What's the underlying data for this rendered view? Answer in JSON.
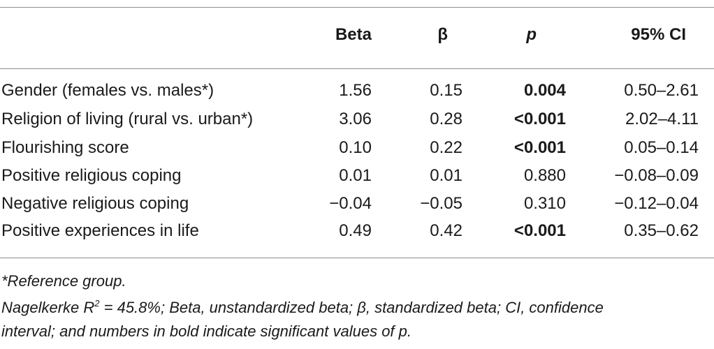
{
  "table": {
    "headers": {
      "label": "",
      "beta": "Beta",
      "std_beta": "β",
      "p": "p",
      "ci": "95% CI"
    },
    "rows": [
      {
        "label": "Gender (females vs. males*)",
        "beta": "1.56",
        "std_beta": "0.15",
        "p": "0.004",
        "p_bold": true,
        "ci": "0.50–2.61"
      },
      {
        "label": "Religion of living (rural vs. urban*)",
        "beta": "3.06",
        "std_beta": "0.28",
        "p": "<0.001",
        "p_bold": true,
        "ci": "2.02–4.11"
      },
      {
        "label": "Flourishing score",
        "beta": "0.10",
        "std_beta": "0.22",
        "p": "<0.001",
        "p_bold": true,
        "ci": "0.05–0.14"
      },
      {
        "label": "Positive religious coping",
        "beta": "0.01",
        "std_beta": "0.01",
        "p": "0.880",
        "p_bold": false,
        "ci": "−0.08–0.09"
      },
      {
        "label": "Negative religious coping",
        "beta": "−0.04",
        "std_beta": "−0.05",
        "p": "0.310",
        "p_bold": false,
        "ci": "−0.12–0.04"
      },
      {
        "label": "Positive experiences in life",
        "beta": "0.49",
        "std_beta": "0.42",
        "p": "<0.001",
        "p_bold": true,
        "ci": "0.35–0.62"
      }
    ]
  },
  "notes": {
    "reference": "*Reference group.",
    "line1_prefix": "Nagelkerke R",
    "line1_sup": "2",
    "line1_rest": " = 45.8%; Beta, unstandardized beta; β, standardized beta; CI, confidence",
    "line2": "interval; and numbers in bold indicate significant values of p."
  }
}
